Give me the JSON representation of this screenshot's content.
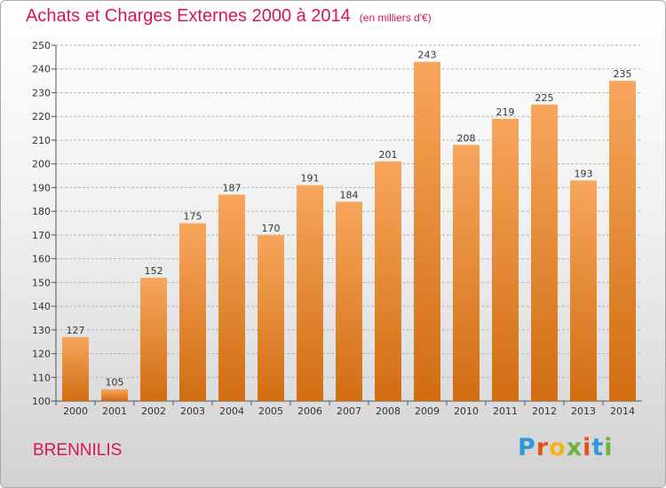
{
  "title": "Achats et Charges Externes 2000 à 2014",
  "subtitle": "(en milliers d'€)",
  "place": "BRENNILIS",
  "logo": {
    "letters": [
      "P",
      "r",
      "o",
      "x",
      "i",
      "t",
      "i"
    ],
    "colors": [
      "#2b9ad6",
      "#e8501d",
      "#f5b31b",
      "#6db33f",
      "#e8501d",
      "#2b9ad6",
      "#6db33f"
    ]
  },
  "colors": {
    "bar_top": "#f7a65c",
    "bar_bottom": "#d06d12",
    "title": "#d8145c"
  },
  "chart_data": {
    "type": "bar",
    "categories": [
      "2000",
      "2001",
      "2002",
      "2003",
      "2004",
      "2005",
      "2006",
      "2007",
      "2008",
      "2009",
      "2010",
      "2011",
      "2012",
      "2013",
      "2014"
    ],
    "values": [
      127,
      105,
      152,
      175,
      187,
      170,
      191,
      184,
      201,
      243,
      208,
      219,
      225,
      193,
      235
    ],
    "ylim": [
      100,
      250
    ],
    "yticks": [
      100,
      110,
      120,
      130,
      140,
      150,
      160,
      170,
      180,
      190,
      200,
      210,
      220,
      230,
      240,
      250
    ],
    "grid": true,
    "title": "Achats et Charges Externes 2000 à 2014",
    "xlabel": "",
    "ylabel": ""
  }
}
